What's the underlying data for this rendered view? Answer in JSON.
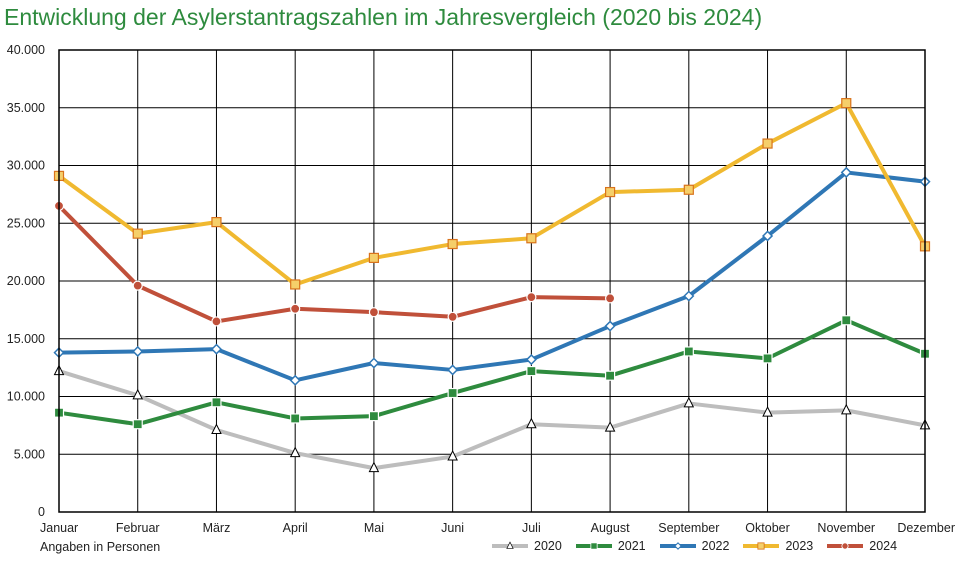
{
  "title": "Entwicklung der Asylerstantragszahlen im Jahresvergleich (2020 bis 2024)",
  "note": "Angaben in Personen",
  "chart_data": {
    "type": "line",
    "title": "Entwicklung der Asylerstantragszahlen im Jahresvergleich (2020 bis 2024)",
    "xlabel": "",
    "ylabel": "",
    "ylim": [
      0,
      40000
    ],
    "yticks": [
      "0",
      "5.000",
      "10.000",
      "15.000",
      "20.000",
      "25.000",
      "30.000",
      "35.000",
      "40.000"
    ],
    "grid": true,
    "legend": "bottom-right",
    "categories": [
      "Januar",
      "Februar",
      "März",
      "April",
      "Mai",
      "Juni",
      "Juli",
      "August",
      "September",
      "Oktober",
      "November",
      "Dezember"
    ],
    "series": [
      {
        "name": "2020",
        "color": "#bdbdbd",
        "marker": "triangle",
        "values": [
          12200,
          10100,
          7100,
          5100,
          3800,
          4800,
          7600,
          7300,
          9400,
          8600,
          8800,
          7500
        ]
      },
      {
        "name": "2021",
        "color": "#2e8b3e",
        "marker": "square",
        "values": [
          8600,
          7600,
          9500,
          8100,
          8300,
          10300,
          12200,
          11800,
          13900,
          13300,
          16600,
          13700
        ]
      },
      {
        "name": "2022",
        "color": "#2f77b5",
        "marker": "diamond",
        "values": [
          13800,
          13900,
          14100,
          11400,
          12900,
          12300,
          13200,
          16100,
          18700,
          23900,
          29400,
          28600
        ]
      },
      {
        "name": "2023",
        "color": "#f0b930",
        "marker": "square",
        "values": [
          29100,
          24100,
          25100,
          19700,
          22000,
          23200,
          23700,
          27700,
          27900,
          31900,
          35400,
          23000
        ]
      },
      {
        "name": "2024",
        "color": "#c0503a",
        "marker": "circle",
        "values": [
          26500,
          19600,
          16500,
          17600,
          17300,
          16900,
          18600,
          18500,
          null,
          null,
          null,
          null
        ]
      }
    ]
  }
}
